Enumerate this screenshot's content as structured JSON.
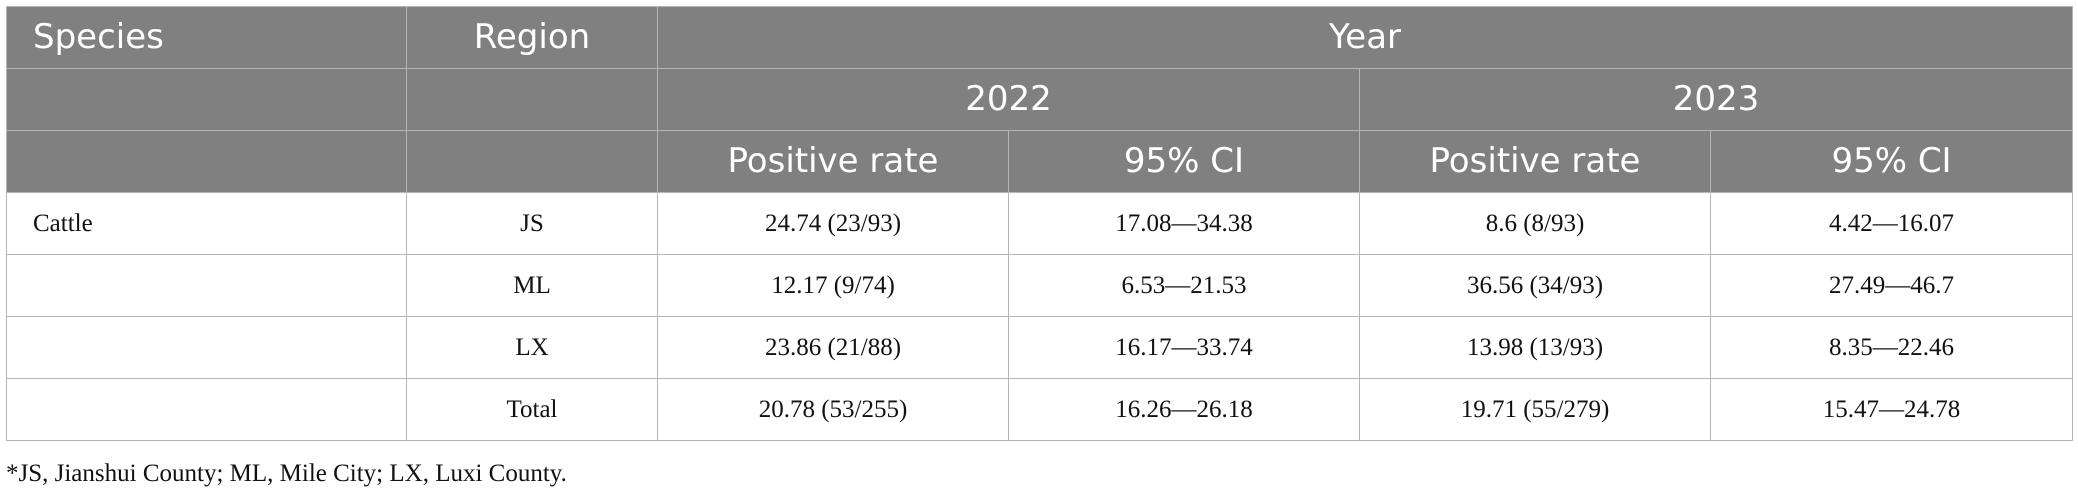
{
  "header": {
    "species": "Species",
    "region": "Region",
    "year": "Year",
    "year1": "2022",
    "year2": "2023",
    "positive_rate": "Positive rate",
    "ci": "95% CI"
  },
  "rows": [
    {
      "species": "Cattle",
      "region": "JS",
      "pr2022": "24.74 (23/93)",
      "ci2022": "17.08—34.38",
      "pr2023": "8.6 (8/93)",
      "ci2023": "4.42—16.07"
    },
    {
      "species": "",
      "region": "ML",
      "pr2022": "12.17 (9/74)",
      "ci2022": "6.53—21.53",
      "pr2023": "36.56 (34/93)",
      "ci2023": "27.49—46.7"
    },
    {
      "species": "",
      "region": "LX",
      "pr2022": "23.86 (21/88)",
      "ci2022": "16.17—33.74",
      "pr2023": "13.98 (13/93)",
      "ci2023": "8.35—22.46"
    },
    {
      "species": "",
      "region": "Total",
      "pr2022": "20.78 (53/255)",
      "ci2022": "16.26—26.18",
      "pr2023": "19.71 (55/279)",
      "ci2023": "15.47—24.78"
    }
  ],
  "footnote": "*JS, Jianshui County; ML, Mile City; LX, Luxi County.",
  "colors": {
    "header_bg": "#808080",
    "header_text": "#ffffff",
    "border": "#b5b5b5"
  }
}
